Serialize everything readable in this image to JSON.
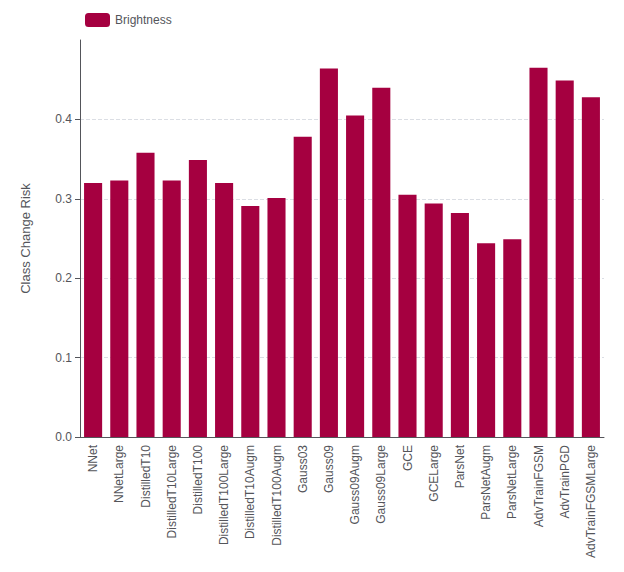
{
  "chart_data": {
    "type": "bar",
    "categories": [
      "NNet",
      "NNetLarge",
      "DistilledT10",
      "DistilledT10Large",
      "DistilledT100",
      "DistilledT100Large",
      "DistilledT10Augm",
      "DistilledT100Augm",
      "Gauss03",
      "Gauss09",
      "Gauss09Augm",
      "Gauss09Large",
      "GCE",
      "GCELarge",
      "ParsNet",
      "ParsNetAugm",
      "ParsNetLarge",
      "AdvTrainFGSM",
      "AdvTrainPGD",
      "AdvTrainFGSMLarge"
    ],
    "series": [
      {
        "name": "Brightness",
        "color": "#A50040",
        "values": [
          0.32,
          0.323,
          0.358,
          0.323,
          0.349,
          0.32,
          0.291,
          0.301,
          0.378,
          0.464,
          0.405,
          0.44,
          0.305,
          0.294,
          0.282,
          0.244,
          0.249,
          0.465,
          0.449,
          0.428
        ]
      }
    ],
    "ylabel": "Class Change Risk",
    "ylim": [
      0.0,
      0.5
    ],
    "yticks": [
      {
        "value": 0,
        "label": "0.0"
      },
      0.1,
      0.2,
      0.3,
      0.4
    ],
    "grid": true,
    "legend": "upper left"
  }
}
